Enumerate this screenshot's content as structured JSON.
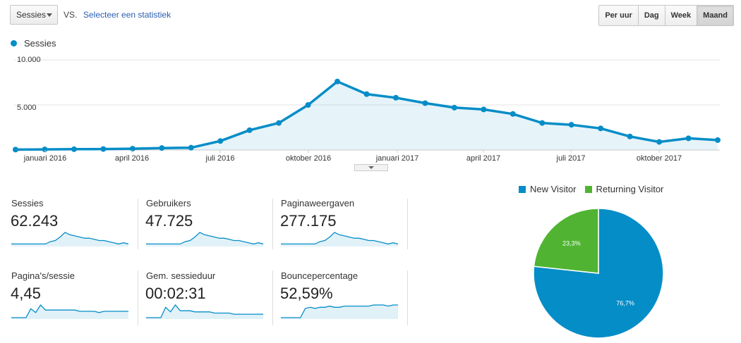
{
  "toolbar": {
    "metric_select": "Sessies",
    "vs_label": "VS.",
    "compare_link": "Selecteer een statistiek",
    "granularity": [
      "Per uur",
      "Dag",
      "Week",
      "Maand"
    ],
    "active_granularity": "Maand"
  },
  "chart_legend": "Sessies",
  "colors": {
    "primary": "#058dc7",
    "secondary": "#50b432"
  },
  "chart_data": [
    {
      "type": "area",
      "series": [
        {
          "name": "Sessies",
          "values": [
            50,
            70,
            90,
            110,
            150,
            220,
            260,
            1000,
            2200,
            3000,
            5000,
            7600,
            6200,
            5800,
            5200,
            4700,
            4500,
            4000,
            3000,
            2800,
            2400,
            1500,
            900,
            1300,
            1100
          ]
        }
      ],
      "x_ticks": [
        "januari 2016",
        "april 2016",
        "juli 2016",
        "oktober 2016",
        "januari 2017",
        "april 2017",
        "juli 2017",
        "oktober 2017"
      ],
      "y_ticks": [
        "10.000",
        "5.000"
      ],
      "ylim": [
        0,
        10000
      ]
    },
    {
      "type": "pie",
      "slices": [
        {
          "label": "New Visitor",
          "value": 76.7,
          "text": "76,7%"
        },
        {
          "label": "Returning Visitor",
          "value": 23.3,
          "text": "23,3%"
        }
      ]
    }
  ],
  "metrics": [
    {
      "label": "Sessies",
      "value": "62.243",
      "spark": [
        1,
        1,
        1,
        1,
        1,
        1,
        1,
        1,
        3,
        4,
        7,
        11,
        9,
        8,
        7,
        6,
        6,
        5,
        4,
        4,
        3,
        2,
        1,
        2,
        1
      ]
    },
    {
      "label": "Gebruikers",
      "value": "47.725",
      "spark": [
        1,
        1,
        1,
        1,
        1,
        1,
        1,
        1,
        3,
        4,
        7,
        11,
        9,
        8,
        7,
        6,
        6,
        5,
        4,
        4,
        3,
        2,
        1,
        2,
        1
      ]
    },
    {
      "label": "Paginaweergaven",
      "value": "277.175",
      "spark": [
        1,
        1,
        1,
        1,
        1,
        1,
        1,
        1,
        3,
        4,
        7,
        11,
        9,
        8,
        7,
        6,
        6,
        5,
        4,
        4,
        3,
        2,
        1,
        2,
        1
      ]
    },
    {
      "label": "Pagina's/sessie",
      "value": "4,45",
      "spark": [
        0,
        0,
        0,
        0,
        7,
        4,
        10,
        6,
        6,
        6,
        6,
        6,
        6,
        6,
        5,
        5,
        5,
        5,
        4,
        5,
        5,
        5,
        5,
        5,
        5
      ]
    },
    {
      "label": "Gem. sessieduur",
      "value": "00:02:31",
      "spark": [
        0,
        0,
        0,
        0,
        9,
        5,
        11,
        6,
        6,
        6,
        5,
        5,
        5,
        5,
        4,
        4,
        4,
        4,
        3,
        3,
        3,
        3,
        3,
        3,
        3
      ]
    },
    {
      "label": "Bouncepercentage",
      "value": "52,59%",
      "spark": [
        0,
        0,
        0,
        0,
        0,
        8,
        9,
        8,
        9,
        9,
        10,
        9,
        9,
        10,
        10,
        10,
        10,
        10,
        10,
        11,
        11,
        11,
        10,
        11,
        11
      ]
    }
  ]
}
